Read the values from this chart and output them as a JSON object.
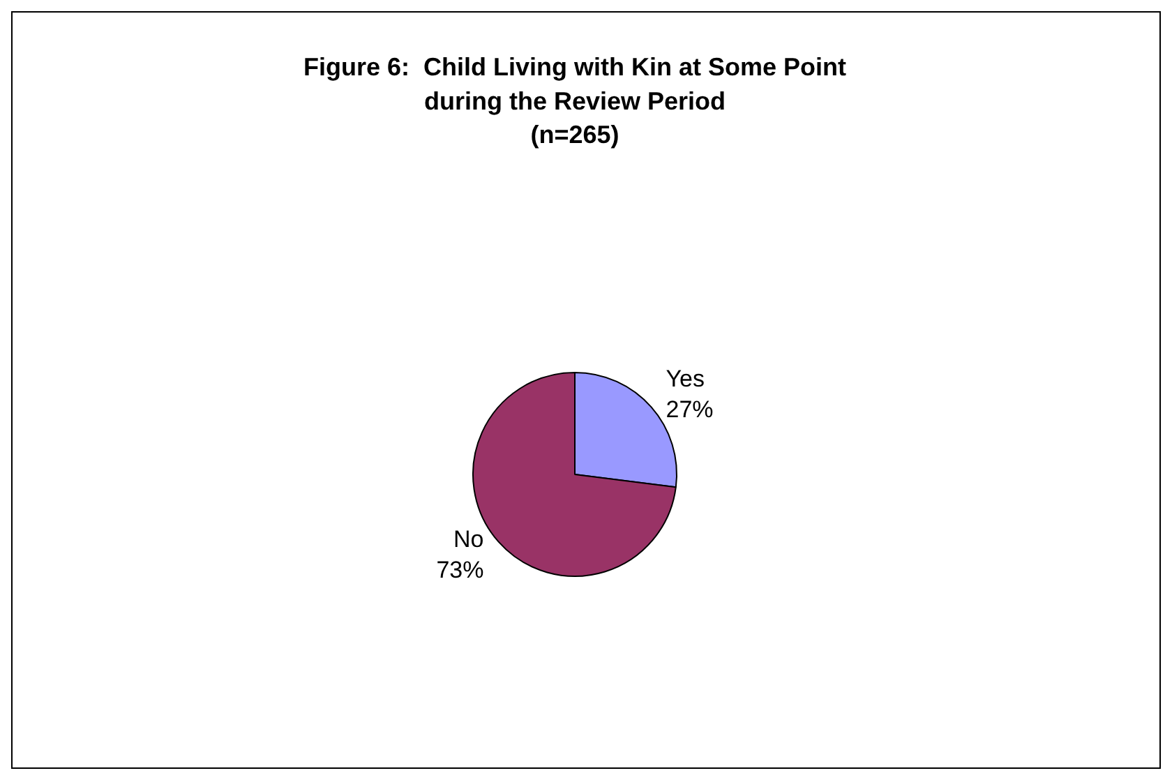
{
  "chart_data": {
    "type": "pie",
    "title": "Figure 6:  Child Living with Kin at Some Point\nduring the Review Period\n(n=265)",
    "categories": [
      "Yes",
      "No"
    ],
    "values": [
      27,
      73
    ],
    "colors": [
      "#9999ff",
      "#993366"
    ],
    "value_labels": [
      "27%",
      "73%"
    ],
    "legend": false
  }
}
